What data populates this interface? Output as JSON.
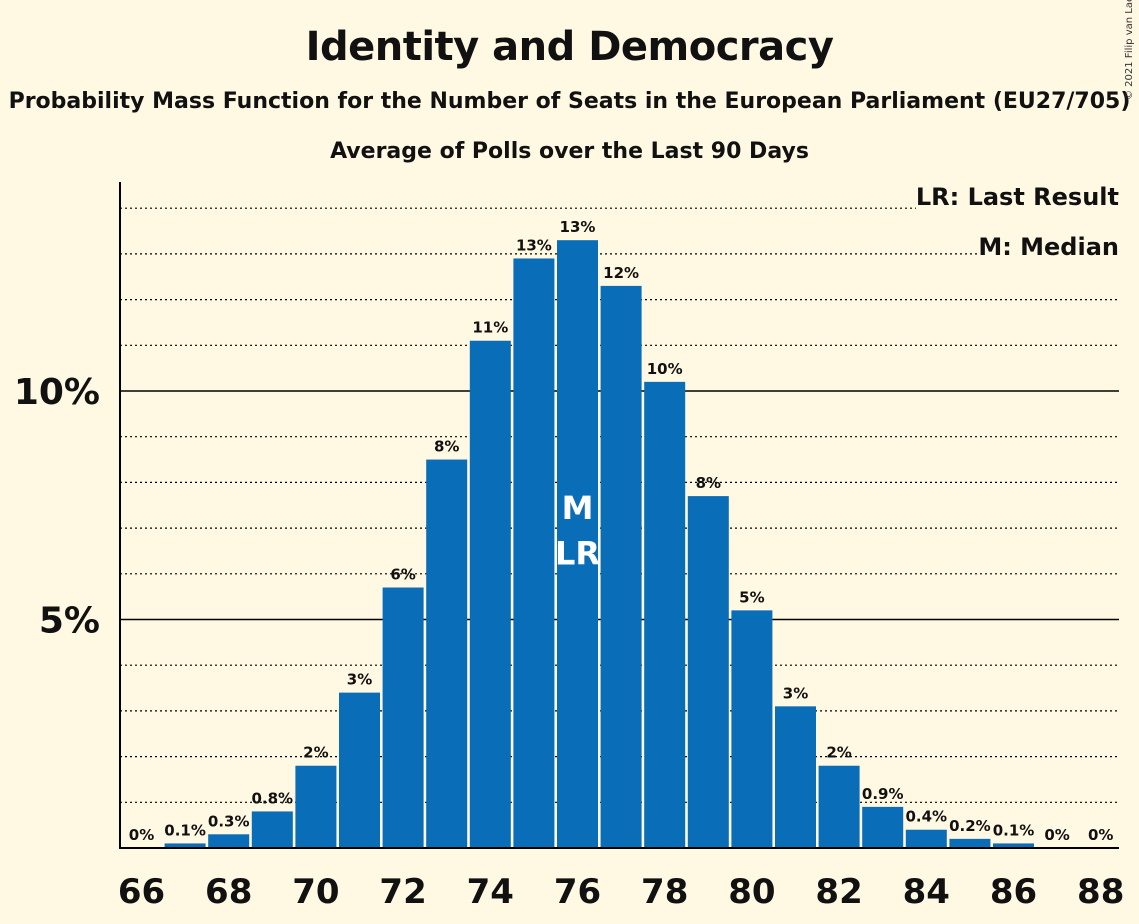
{
  "header": {
    "title": "Identity and Democracy",
    "subtitle": "Probability Mass Function for the Number of Seats in the European Parliament (EU27/705)",
    "subtitle2": "Average of Polls over the Last 90 Days",
    "copyright": "© 2021 Filip van Laenen"
  },
  "legend": {
    "last_result": "LR: Last Result",
    "median": "M: Median"
  },
  "colors": {
    "bar": "#0A6DB8",
    "background": "#FFF9E3"
  },
  "chart_data": {
    "type": "bar",
    "x": [
      66,
      67,
      68,
      69,
      70,
      71,
      72,
      73,
      74,
      75,
      76,
      77,
      78,
      79,
      80,
      81,
      82,
      83,
      84,
      85,
      86,
      87,
      88
    ],
    "values": [
      0.0,
      0.1,
      0.3,
      0.8,
      1.8,
      3.4,
      5.7,
      8.5,
      11.1,
      12.9,
      13.3,
      12.3,
      10.2,
      7.7,
      5.2,
      3.1,
      1.8,
      0.9,
      0.4,
      0.2,
      0.1,
      0.0,
      0.0
    ],
    "labels": [
      "0%",
      "0.1%",
      "0.3%",
      "0.8%",
      "2%",
      "3%",
      "6%",
      "8%",
      "11%",
      "13%",
      "13%",
      "12%",
      "10%",
      "8%",
      "5%",
      "3%",
      "2%",
      "0.9%",
      "0.4%",
      "0.2%",
      "0.1%",
      "0%",
      "0%"
    ],
    "x_ticks": [
      "66",
      "68",
      "70",
      "72",
      "74",
      "76",
      "78",
      "80",
      "82",
      "84",
      "86",
      "88"
    ],
    "y_ticks": [
      {
        "value": 5,
        "label": "5%"
      },
      {
        "value": 10,
        "label": "10%"
      }
    ],
    "ylim": [
      0,
      14.5
    ],
    "median": 76,
    "last_result": 76,
    "median_label": "M",
    "last_result_label": "LR",
    "grid": "dotted every 1%, solid at 5% and 10%"
  }
}
